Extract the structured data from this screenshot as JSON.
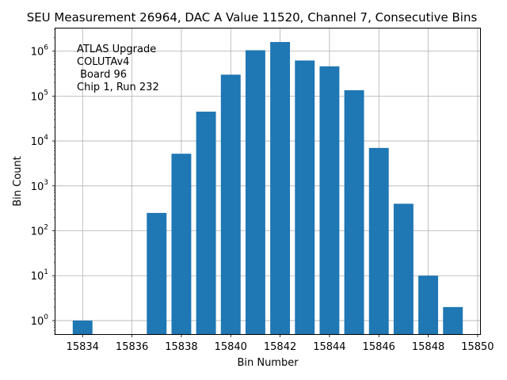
{
  "chart_data": {
    "type": "bar",
    "title": "SEU Measurement 26964, DAC A Value 11520, Channel 7, Consecutive Bins",
    "xlabel": "Bin Number",
    "ylabel": "Bin Count",
    "yscale": "log",
    "xlim": [
      15832.9,
      15850.1
    ],
    "ylim": [
      0.5,
      3200000
    ],
    "grid": true,
    "bar_color": "#1f77b4",
    "x": [
      15834,
      15837,
      15838,
      15839,
      15840,
      15841,
      15842,
      15843,
      15844,
      15845,
      15846,
      15847,
      15848,
      15849
    ],
    "values": [
      1,
      250,
      5200,
      45000,
      300000,
      1050000,
      1600000,
      620000,
      460000,
      135000,
      7000,
      400,
      10,
      2
    ],
    "x_ticks": [
      15834,
      15836,
      15838,
      15840,
      15842,
      15844,
      15846,
      15848,
      15850
    ],
    "y_ticks": [
      {
        "base": "10",
        "exp": "0",
        "value": 1
      },
      {
        "base": "10",
        "exp": "1",
        "value": 10
      },
      {
        "base": "10",
        "exp": "2",
        "value": 100
      },
      {
        "base": "10",
        "exp": "3",
        "value": 1000
      },
      {
        "base": "10",
        "exp": "4",
        "value": 10000
      },
      {
        "base": "10",
        "exp": "5",
        "value": 100000
      },
      {
        "base": "10",
        "exp": "6",
        "value": 1000000
      }
    ],
    "annotation": [
      "ATLAS Upgrade",
      "COLUTAv4",
      " Board 96",
      "Chip 1, Run 232"
    ]
  }
}
